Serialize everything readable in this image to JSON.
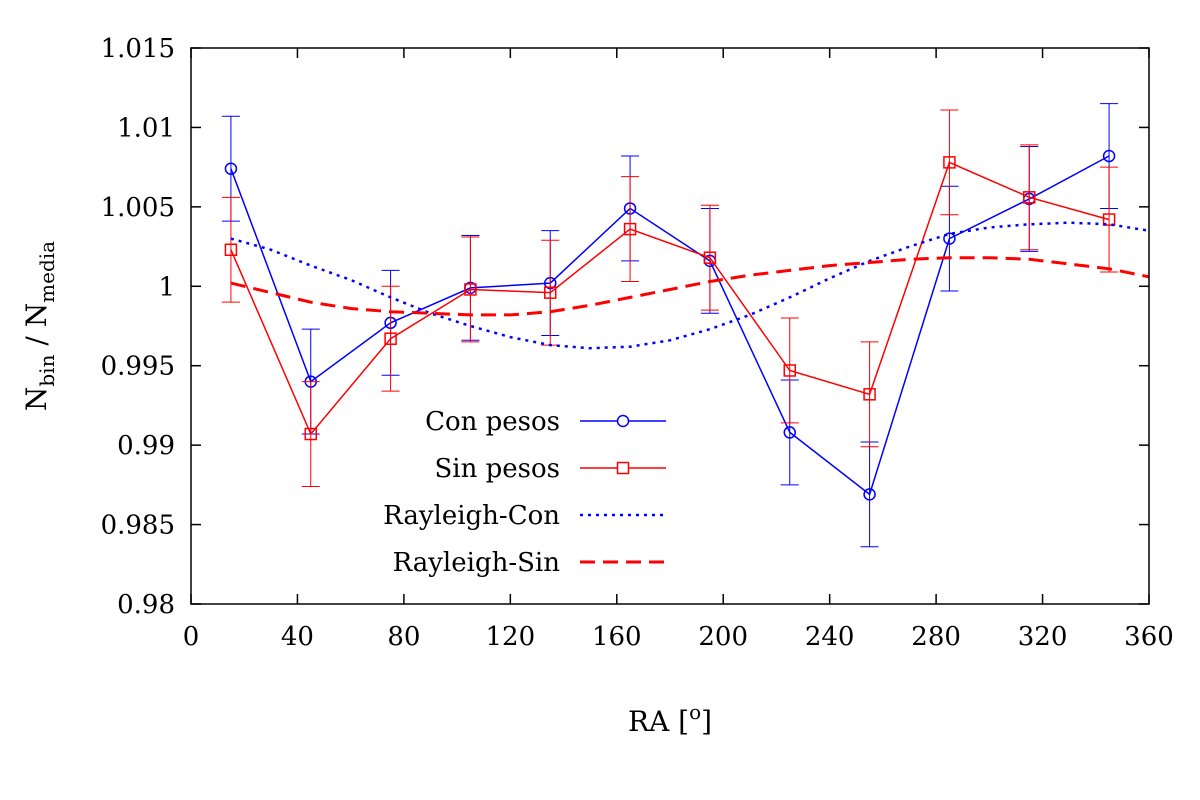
{
  "chart_data": {
    "type": "line",
    "xlabel": "RA [o]",
    "xlabel_parts": {
      "main": "RA [",
      "sup": "o",
      "end": "]"
    },
    "ylabel": "Nbin / Nmedia",
    "ylabel_parts": {
      "n1": "N",
      "sub1": "bin",
      "sep": " / ",
      "n2": "N",
      "sub2": "media"
    },
    "xlim": [
      0,
      360
    ],
    "ylim": [
      0.98,
      1.015
    ],
    "xticks": [
      0,
      40,
      80,
      120,
      160,
      200,
      240,
      280,
      320,
      360
    ],
    "xtick_labels": [
      "0",
      "40",
      "80",
      "120",
      "160",
      "200",
      "240",
      "280",
      "320",
      "360"
    ],
    "yticks": [
      0.98,
      0.985,
      0.99,
      0.995,
      1.0,
      1.005,
      1.01,
      1.015
    ],
    "ytick_labels": [
      "0.98",
      "0.985",
      "0.99",
      "0.995",
      "1",
      "1.005",
      "1.01",
      "1.015"
    ],
    "grid": false,
    "legend_position": "center",
    "series": [
      {
        "name": "Con pesos",
        "color": "#0000ff",
        "marker": "circle",
        "style": "solid",
        "x": [
          15,
          45,
          75,
          105,
          135,
          165,
          195,
          225,
          255,
          285,
          315,
          345
        ],
        "y": [
          1.0074,
          0.994,
          0.9977,
          0.9999,
          1.0002,
          1.0049,
          1.0016,
          0.9908,
          0.9869,
          1.003,
          1.0055,
          1.0082
        ],
        "err": [
          0.0033,
          0.0033,
          0.0033,
          0.0033,
          0.0033,
          0.0033,
          0.0033,
          0.0033,
          0.0033,
          0.0033,
          0.0033,
          0.0033
        ]
      },
      {
        "name": "Sin pesos",
        "color": "#ff0000",
        "marker": "square",
        "style": "solid",
        "x": [
          15,
          45,
          75,
          105,
          135,
          165,
          195,
          225,
          255,
          285,
          315,
          345
        ],
        "y": [
          1.0023,
          0.9907,
          0.9967,
          0.9998,
          0.9996,
          1.0036,
          1.0018,
          0.9947,
          0.9932,
          1.0078,
          1.0056,
          1.0042
        ],
        "err": [
          0.0033,
          0.0033,
          0.0033,
          0.0033,
          0.0033,
          0.0033,
          0.0033,
          0.0033,
          0.0033,
          0.0033,
          0.0033,
          0.0033
        ]
      },
      {
        "name": "Rayleigh-Con",
        "color": "#0000ff",
        "style": "dotted",
        "x": [
          15,
          30,
          45,
          60,
          75,
          90,
          105,
          120,
          135,
          150,
          165,
          180,
          195,
          210,
          225,
          240,
          255,
          270,
          285,
          300,
          315,
          330,
          345,
          360
        ],
        "y": [
          1.003,
          1.0023,
          1.0013,
          1.0004,
          0.9993,
          0.9983,
          0.9975,
          0.9968,
          0.9963,
          0.9961,
          0.9962,
          0.9966,
          0.9973,
          0.9982,
          0.9993,
          1.0005,
          1.0016,
          1.0025,
          1.0033,
          1.0037,
          1.0039,
          1.004,
          1.0039,
          1.0035
        ]
      },
      {
        "name": "Rayleigh-Sin",
        "color": "#ff0000",
        "style": "dashed",
        "x": [
          15,
          30,
          45,
          60,
          75,
          90,
          105,
          120,
          135,
          150,
          165,
          180,
          195,
          210,
          225,
          240,
          255,
          270,
          285,
          300,
          315,
          330,
          345,
          360
        ],
        "y": [
          1.0002,
          0.9996,
          0.999,
          0.9986,
          0.9984,
          0.9983,
          0.9982,
          0.9982,
          0.9984,
          0.9988,
          0.9993,
          0.9998,
          1.0003,
          1.0007,
          1.001,
          1.0013,
          1.0015,
          1.0017,
          1.0018,
          1.0018,
          1.0017,
          1.0014,
          1.0011,
          1.0006
        ]
      }
    ]
  }
}
